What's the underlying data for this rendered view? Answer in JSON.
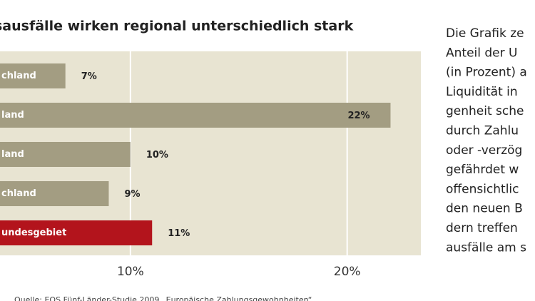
{
  "chart_data": {
    "type": "hbar",
    "title": "sausfälle wirken regional unterschiedlich stark",
    "categories": [
      "chland",
      "land",
      "land",
      "chland",
      "undesgebiet"
    ],
    "values": [
      7,
      22,
      10,
      9,
      11
    ],
    "value_labels": [
      "7%",
      "22%",
      "10%",
      "9%",
      "11%"
    ],
    "colors": [
      "#a39d82",
      "#a39d82",
      "#a39d82",
      "#a39d82",
      "#b3141c"
    ],
    "xlim": [
      0,
      23.4
    ],
    "xticks": [
      {
        "value": 10,
        "label": "10%"
      },
      {
        "value": 20,
        "label": "20%"
      }
    ],
    "grid": true,
    "source": "Quelle: EOS Fünf-Länder-Studie 2009 „Europäische Zahlungsgewohnheiten“"
  },
  "article": {
    "lines": [
      "Die Grafik ze",
      "Anteil der U",
      "(in Prozent) a",
      "Liquidität in",
      "genheit sche",
      "durch Zahlu",
      "oder -verzög",
      "gefährdet w",
      "offensichtlic",
      "den neuen B",
      "dern treffen",
      "ausfälle am s"
    ]
  }
}
